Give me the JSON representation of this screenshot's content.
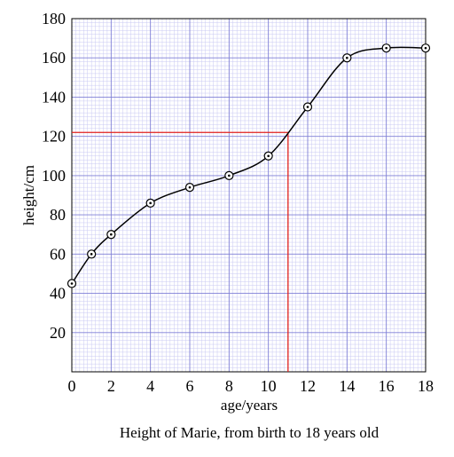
{
  "chart_data": {
    "type": "line",
    "title": "Height of Marie, from birth to 18 years old",
    "xlabel": "age/years",
    "ylabel": "height/cm",
    "xlim": [
      0,
      18
    ],
    "ylim": [
      0,
      180
    ],
    "xticks": [
      0,
      2,
      4,
      6,
      8,
      10,
      12,
      14,
      16,
      18
    ],
    "yticks": [
      20,
      40,
      60,
      80,
      100,
      120,
      140,
      160,
      180
    ],
    "grid": true,
    "series": [
      {
        "x": [
          0,
          1,
          2,
          4,
          6,
          8,
          10,
          12,
          14,
          16,
          18
        ],
        "values": [
          45,
          60,
          70,
          86,
          94,
          100,
          110,
          135,
          160,
          165,
          165
        ],
        "marker": "circled-dot",
        "color": "#000000"
      }
    ],
    "annotations": [
      {
        "type": "reading-line",
        "x": 11,
        "y": 122,
        "color": "#e0201c"
      }
    ],
    "colors": {
      "grid_fine": "#c9c9f3",
      "grid_major": "#7f7fd6",
      "reading_line": "#e0201c"
    }
  }
}
